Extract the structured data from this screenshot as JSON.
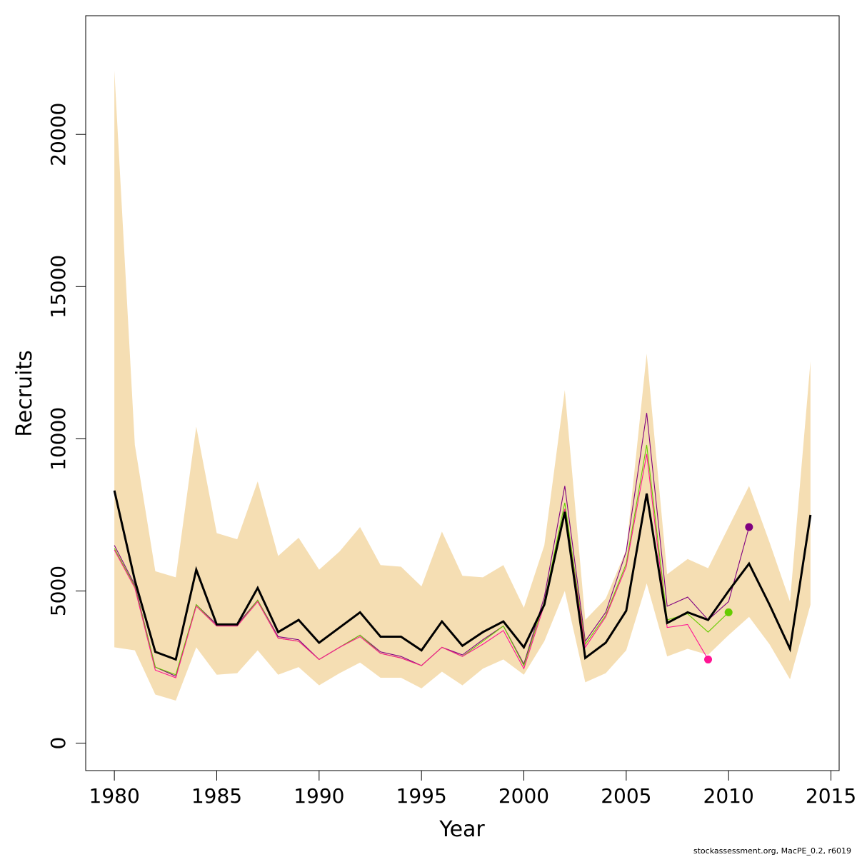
{
  "chart_data": {
    "type": "line",
    "title": "",
    "xlabel": "Year",
    "ylabel": "Recruits",
    "xlim": [
      1978.6,
      2015.4
    ],
    "ylim": [
      -900,
      23900
    ],
    "x_ticks": [
      1980,
      1985,
      1990,
      1995,
      2000,
      2005,
      2010,
      2015
    ],
    "y_ticks": [
      0,
      5000,
      10000,
      15000,
      20000
    ],
    "grid": false,
    "legend": "none",
    "colors": {
      "band": "#f5deb3",
      "main": "#000000",
      "retro1": "#800080",
      "retro2": "#66cc00",
      "retro3": "#ff1493"
    },
    "band": {
      "x": [
        1980,
        1981,
        1982,
        1983,
        1984,
        1985,
        1986,
        1987,
        1988,
        1989,
        1990,
        1991,
        1992,
        1993,
        1994,
        1995,
        1996,
        1997,
        1998,
        1999,
        2000,
        2001,
        2002,
        2003,
        2004,
        2005,
        2006,
        2007,
        2008,
        2009,
        2010,
        2011,
        2012,
        2013,
        2014
      ],
      "upper": [
        22100,
        9800,
        5650,
        5450,
        10400,
        6900,
        6700,
        8600,
        6150,
        6750,
        5700,
        6300,
        7100,
        5850,
        5800,
        5150,
        6950,
        5500,
        5450,
        5850,
        4450,
        6500,
        11600,
        4050,
        4750,
        6350,
        12800,
        5550,
        6050,
        5750,
        7100,
        8450,
        6600,
        4650,
        12550
      ],
      "lower": [
        3150,
        3050,
        1600,
        1400,
        3150,
        2250,
        2300,
        3050,
        2250,
        2500,
        1900,
        2300,
        2650,
        2150,
        2150,
        1800,
        2350,
        1900,
        2450,
        2750,
        2250,
        3350,
        5000,
        2000,
        2300,
        3050,
        5250,
        2850,
        3100,
        2900,
        3550,
        4150,
        3250,
        2100,
        4550
      ]
    },
    "series": [
      {
        "x": [
          1980,
          1981,
          1982,
          1983,
          1984,
          1985,
          1986,
          1987,
          1988,
          1989,
          1990,
          1991,
          1992,
          1993,
          1994,
          1995,
          1996,
          1997,
          1998,
          1999,
          2000,
          2001,
          2002,
          2003,
          2004,
          2005,
          2006,
          2007,
          2008,
          2009,
          2010,
          2011
        ],
        "values": [
          6500,
          5200,
          2500,
          2200,
          4550,
          3900,
          3900,
          4700,
          3500,
          3400,
          2750,
          3150,
          3550,
          3000,
          2850,
          2550,
          3150,
          2900,
          3400,
          3850,
          2600,
          4800,
          8450,
          3350,
          4300,
          6300,
          10850,
          4500,
          4800,
          4050,
          4650,
          7100
        ],
        "marker_last": true
      },
      {
        "x": [
          1980,
          1981,
          1982,
          1983,
          1984,
          1985,
          1986,
          1987,
          1988,
          1989,
          1990,
          1991,
          1992,
          1993,
          1994,
          1995,
          1996,
          1997,
          1998,
          1999,
          2000,
          2001,
          2002,
          2003,
          2004,
          2005,
          2006,
          2007,
          2008,
          2009,
          2010
        ],
        "values": [
          6400,
          5150,
          2500,
          2250,
          4550,
          3850,
          3850,
          4700,
          3450,
          3350,
          2750,
          3150,
          3550,
          2950,
          2800,
          2550,
          3150,
          2850,
          3350,
          3850,
          2550,
          4650,
          7900,
          3250,
          4200,
          5900,
          9800,
          4050,
          4250,
          3650,
          4300
        ],
        "marker_last": true
      },
      {
        "x": [
          1980,
          1981,
          1982,
          1983,
          1984,
          1985,
          1986,
          1987,
          1988,
          1989,
          1990,
          1991,
          1992,
          1993,
          1994,
          1995,
          1996,
          1997,
          1998,
          1999,
          2000,
          2001,
          2002,
          2003,
          2004,
          2005,
          2006,
          2007,
          2008,
          2009
        ],
        "values": [
          6350,
          5100,
          2400,
          2150,
          4500,
          3850,
          3850,
          4650,
          3450,
          3350,
          2750,
          3150,
          3500,
          2950,
          2800,
          2550,
          3150,
          2850,
          3250,
          3700,
          2450,
          4550,
          7700,
          3150,
          4150,
          5800,
          9500,
          3800,
          3900,
          2750
        ],
        "marker_last": true
      },
      {
        "x": [
          1980,
          1981,
          1982,
          1983,
          1984,
          1985,
          1986,
          1987,
          1988,
          1989,
          1990,
          1991,
          1992,
          1993,
          1994,
          1995,
          1996,
          1997,
          1998,
          1999,
          2000,
          2001,
          2002,
          2003,
          2004,
          2005,
          2006,
          2007,
          2008,
          2009,
          2010,
          2011,
          2012,
          2013,
          2014
        ],
        "values": [
          8300,
          5350,
          3000,
          2750,
          5700,
          3900,
          3900,
          5100,
          3650,
          4050,
          3300,
          3800,
          4300,
          3500,
          3500,
          3050,
          4000,
          3200,
          3650,
          4000,
          3150,
          4550,
          7600,
          2800,
          3300,
          4350,
          8200,
          3950,
          4300,
          4050,
          5000,
          5900,
          4550,
          3100,
          7500
        ],
        "marker_last": false
      }
    ]
  },
  "footer": "stockassessment.org, MacPE_0.2, r6019"
}
